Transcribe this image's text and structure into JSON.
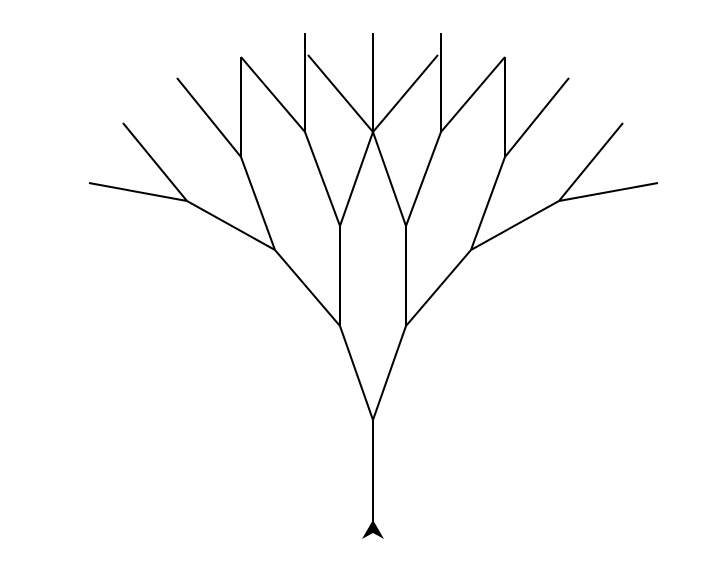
{
  "diagram": {
    "type": "fractal-tree",
    "stroke_color": "#000000",
    "background_color": "#ffffff",
    "turtle_icon": "turtle-arrow-icon",
    "turtle_color": "#000000"
  }
}
